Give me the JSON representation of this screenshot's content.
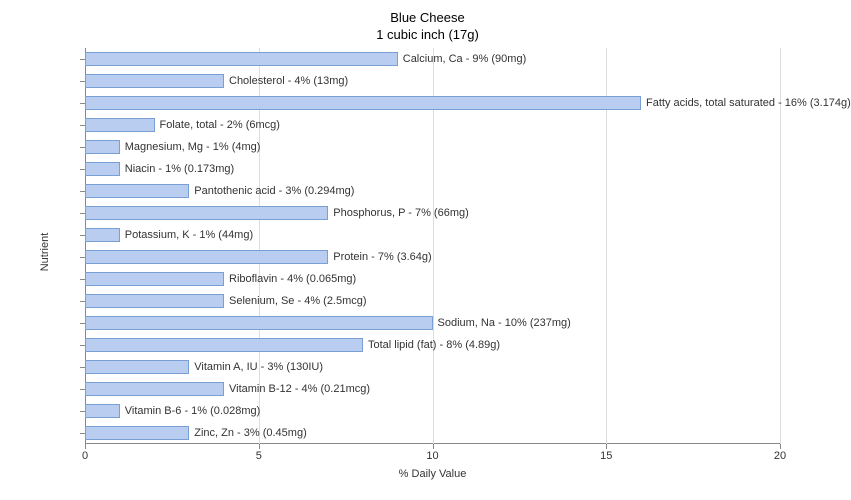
{
  "title_line1": "Blue Cheese",
  "title_line2": "1 cubic inch (17g)",
  "x_axis_label": "% Daily Value",
  "y_axis_label": "Nutrient",
  "xlim": [
    0,
    20
  ],
  "xtick_step": 5,
  "bar_color": "#b8cdf0",
  "bar_border_color": "#7a9fd4",
  "grid_color": "#dddddd",
  "background_color": "#ffffff",
  "title_fontsize": 13,
  "label_fontsize": 11,
  "bars": [
    {
      "value": 9,
      "label": "Calcium, Ca - 9% (90mg)"
    },
    {
      "value": 4,
      "label": "Cholesterol - 4% (13mg)"
    },
    {
      "value": 16,
      "label": "Fatty acids, total saturated - 16% (3.174g)"
    },
    {
      "value": 2,
      "label": "Folate, total - 2% (6mcg)"
    },
    {
      "value": 1,
      "label": "Magnesium, Mg - 1% (4mg)"
    },
    {
      "value": 1,
      "label": "Niacin - 1% (0.173mg)"
    },
    {
      "value": 3,
      "label": "Pantothenic acid - 3% (0.294mg)"
    },
    {
      "value": 7,
      "label": "Phosphorus, P - 7% (66mg)"
    },
    {
      "value": 1,
      "label": "Potassium, K - 1% (44mg)"
    },
    {
      "value": 7,
      "label": "Protein - 7% (3.64g)"
    },
    {
      "value": 4,
      "label": "Riboflavin - 4% (0.065mg)"
    },
    {
      "value": 4,
      "label": "Selenium, Se - 4% (2.5mcg)"
    },
    {
      "value": 10,
      "label": "Sodium, Na - 10% (237mg)"
    },
    {
      "value": 8,
      "label": "Total lipid (fat) - 8% (4.89g)"
    },
    {
      "value": 3,
      "label": "Vitamin A, IU - 3% (130IU)"
    },
    {
      "value": 4,
      "label": "Vitamin B-12 - 4% (0.21mcg)"
    },
    {
      "value": 1,
      "label": "Vitamin B-6 - 1% (0.028mg)"
    },
    {
      "value": 3,
      "label": "Zinc, Zn - 3% (0.45mg)"
    }
  ]
}
